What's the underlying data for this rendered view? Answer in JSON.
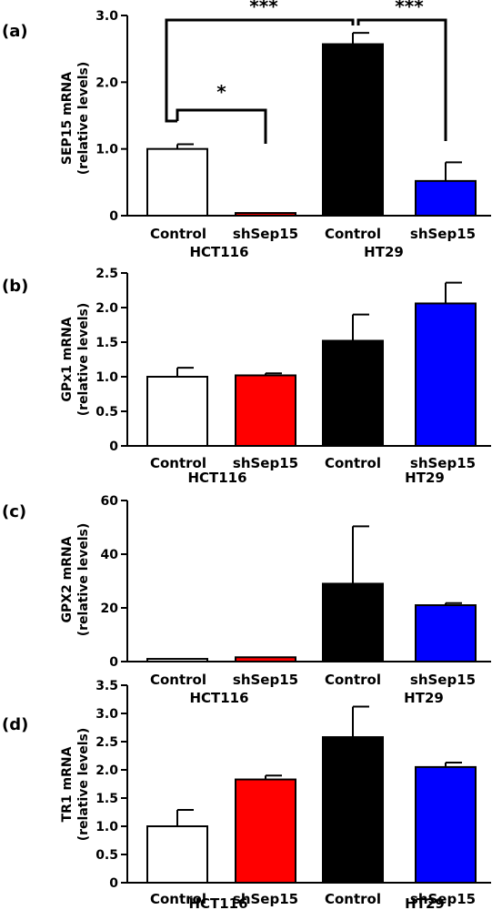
{
  "chart_data": [
    {
      "panel": "(a)",
      "type": "bar",
      "ylabel": [
        "SEP15 mRNA",
        "(relative levels)"
      ],
      "ylim": [
        0,
        3.0
      ],
      "yticks": [
        "0",
        "1.0",
        "2.0",
        "3.0"
      ],
      "yticks_values": [
        0,
        1.0,
        2.0,
        3.0
      ],
      "categories": [
        "Control",
        "shSep15",
        "Control",
        "shSep15"
      ],
      "groups": [
        "HCT116",
        "HT29"
      ],
      "values": [
        1.0,
        0.04,
        2.57,
        0.52
      ],
      "errors": [
        0.07,
        0.0,
        0.17,
        0.28
      ],
      "colors": [
        "#ffffff",
        "#ff0000",
        "#000000",
        "#0000ff"
      ],
      "significance": [
        {
          "from": 0,
          "to": 1,
          "label": "*"
        },
        {
          "from": 0,
          "to": 2,
          "label": "***"
        },
        {
          "from": 2,
          "to": 3,
          "label": "***"
        }
      ]
    },
    {
      "panel": "(b)",
      "type": "bar",
      "ylabel": [
        "GPx1 mRNA",
        "(relative levels)"
      ],
      "ylim": [
        0,
        2.5
      ],
      "yticks": [
        "0",
        "0.5",
        "1.0",
        "1.5",
        "2.0",
        "2.5"
      ],
      "yticks_values": [
        0,
        0.5,
        1.0,
        1.5,
        2.0,
        2.5
      ],
      "categories": [
        "Control",
        "shSep15",
        "Control",
        "shSep15"
      ],
      "groups": [
        "HCT116",
        "HT29"
      ],
      "values": [
        1.0,
        1.02,
        1.52,
        2.06
      ],
      "errors": [
        0.13,
        0.03,
        0.38,
        0.3
      ],
      "colors": [
        "#ffffff",
        "#ff0000",
        "#000000",
        "#0000ff"
      ],
      "significance": []
    },
    {
      "panel": "(c)",
      "type": "bar",
      "ylabel": [
        "GPX2 mRNA",
        "(relative levels)"
      ],
      "ylim": [
        0,
        60
      ],
      "yticks": [
        "0",
        "20",
        "40",
        "60"
      ],
      "yticks_values": [
        0,
        20,
        40,
        60
      ],
      "categories": [
        "Control",
        "shSep15",
        "Control",
        "shSep15"
      ],
      "groups": [
        "HCT116",
        "HT29"
      ],
      "values": [
        1.0,
        1.6,
        29.0,
        21.0
      ],
      "errors": [
        0.0,
        0.0,
        21.4,
        0.8
      ],
      "colors": [
        "#ffffff",
        "#ff0000",
        "#000000",
        "#0000ff"
      ],
      "significance": []
    },
    {
      "panel": "(d)",
      "type": "bar",
      "ylabel": [
        "TR1 mRNA",
        "(relative levels)"
      ],
      "ylim": [
        0,
        3.5
      ],
      "yticks": [
        "0",
        "0.5",
        "1.0",
        "1.5",
        "2.0",
        "2.5",
        "3.0",
        "3.5"
      ],
      "yticks_values": [
        0,
        0.5,
        1.0,
        1.5,
        2.0,
        2.5,
        3.0,
        3.5
      ],
      "categories": [
        "Control",
        "shSep15",
        "Control",
        "shSep15"
      ],
      "groups": [
        "HCT116",
        "HT29"
      ],
      "values": [
        1.0,
        1.83,
        2.58,
        2.05
      ],
      "errors": [
        0.29,
        0.07,
        0.54,
        0.08
      ],
      "colors": [
        "#ffffff",
        "#ff0000",
        "#000000",
        "#0000ff"
      ],
      "significance": []
    }
  ]
}
